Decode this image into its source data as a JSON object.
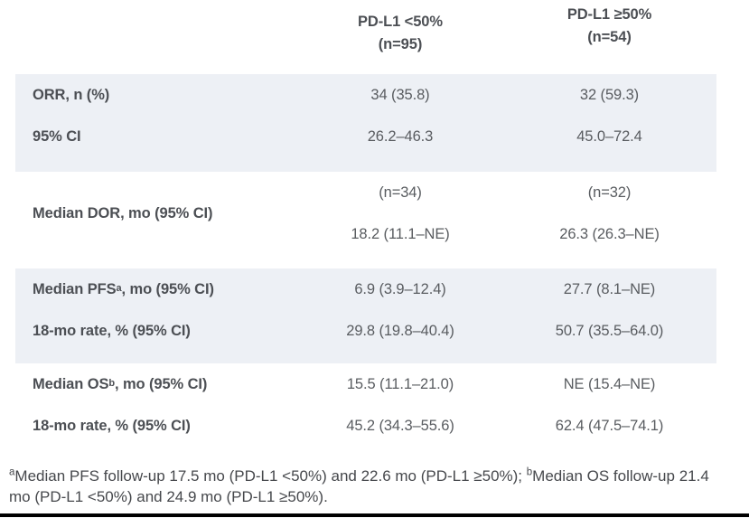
{
  "colors": {
    "shaded_row_bg": "#edf0f5",
    "label_text": "#4c4f54",
    "value_text": "#595c60",
    "footnote_text": "#46484c",
    "bottom_rule": "#000000"
  },
  "header": {
    "col1": {
      "line1": "PD-L1 <50%",
      "line2": "(n=95)"
    },
    "col2": {
      "line1": "PD-L1 ≥50%",
      "line2": "(n=54)"
    }
  },
  "blocks": [
    {
      "shaded": true,
      "rows": [
        {
          "label": "ORR, n (%)",
          "col1": "34 (35.8)",
          "col2": "32 (59.3)"
        },
        {
          "label": "95% CI",
          "col1": "26.2–46.3",
          "col2": "45.0–72.4"
        }
      ]
    },
    {
      "shaded": false,
      "span_label": "Median DOR, mo (95% CI)",
      "rows": [
        {
          "col1": "(n=34)",
          "col2": "(n=32)"
        },
        {
          "col1": "18.2 (11.1–NE)",
          "col2": "26.3 (26.3–NE)"
        }
      ]
    },
    {
      "shaded": true,
      "rows": [
        {
          "label_pre": "Median PFS",
          "label_sup": "a",
          "label_post": ", mo (95% CI)",
          "col1": "6.9 (3.9–12.4)",
          "col2": "27.7 (8.1–NE)"
        },
        {
          "label": "18-mo rate, % (95% CI)",
          "col1": "29.8 (19.8–40.4)",
          "col2": "50.7 (35.5–64.0)"
        }
      ]
    },
    {
      "shaded": false,
      "rows": [
        {
          "label_pre": "Median OS",
          "label_sup": "b",
          "label_post": ", mo (95% CI)",
          "col1": "15.5 (11.1–21.0)",
          "col2": "NE (15.4–NE)"
        },
        {
          "label": "18-mo rate, % (95% CI)",
          "col1": "45.2 (34.3–55.6)",
          "col2": "62.4 (47.5–74.1)"
        }
      ]
    }
  ],
  "footnote": {
    "sup_a": "a",
    "text_a": "Median PFS follow-up 17.5 mo (PD-L1 <50%) and 22.6 mo (PD-L1 ≥50%); ",
    "sup_b": "b",
    "text_b": "Median OS follow-up 21.4 mo (PD-L1 <50%) and 24.9 mo (PD-L1 ≥50%)."
  }
}
